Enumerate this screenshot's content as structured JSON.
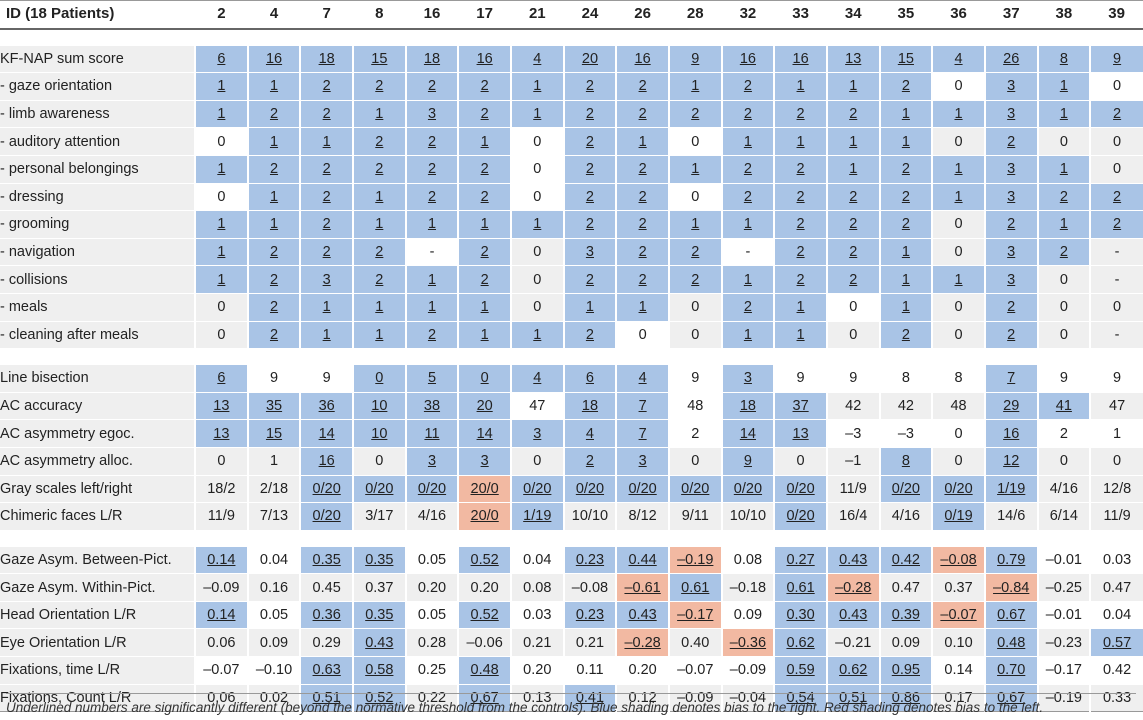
{
  "header": {
    "label": "ID (18 Patients)",
    "patients": [
      "2",
      "4",
      "7",
      "8",
      "16",
      "17",
      "21",
      "24",
      "26",
      "28",
      "32",
      "33",
      "34",
      "35",
      "36",
      "37",
      "38",
      "39"
    ]
  },
  "sections": [
    {
      "rows": [
        {
          "label": "KF-NAP sum score",
          "cells": [
            "6|bu",
            "16|bu",
            "18|bu",
            "15|bu",
            "18|bu",
            "16|bu",
            "4|bu",
            "20|bu",
            "16|bu",
            "9|bu",
            "16|bu",
            "16|bu",
            "13|bu",
            "15|bu",
            "4|bu",
            "26|bu",
            "8|bu",
            "9|bu"
          ]
        },
        {
          "label": "- gaze orientation",
          "cells": [
            "1|bu",
            "1|bu",
            "2|bu",
            "2|bu",
            "2|bu",
            "2|bu",
            "1|bu",
            "2|bu",
            "2|bu",
            "1|bu",
            "2|bu",
            "1|bu",
            "1|bu",
            "2|bu",
            "0|w",
            "3|bu",
            "1|bu",
            "0|w"
          ]
        },
        {
          "label": "- limb awareness",
          "cells": [
            "1|bu",
            "2|bu",
            "2|bu",
            "1|bu",
            "3|bu",
            "2|bu",
            "1|bu",
            "2|bu",
            "2|bu",
            "2|bu",
            "2|bu",
            "2|bu",
            "2|bu",
            "1|bu",
            "1|bu",
            "3|bu",
            "1|bu",
            "2|bu"
          ]
        },
        {
          "label": "- auditory attention",
          "cells": [
            "0|w",
            "1|bu",
            "1|bu",
            "2|bu",
            "2|bu",
            "1|bu",
            "0|w",
            "2|bu",
            "1|bu",
            "0|w",
            "1|bu",
            "1|bu",
            "1|bu",
            "1|bu",
            "0|g",
            "2|bu",
            "0|g",
            "0|g"
          ]
        },
        {
          "label": "- personal belongings",
          "cells": [
            "1|bu",
            "2|bu",
            "2|bu",
            "2|bu",
            "2|bu",
            "2|bu",
            "0|w",
            "2|bu",
            "2|bu",
            "1|bu",
            "2|bu",
            "2|bu",
            "1|bu",
            "2|bu",
            "1|bu",
            "3|bu",
            "1|bu",
            "0|g"
          ]
        },
        {
          "label": "- dressing",
          "cells": [
            "0|w",
            "1|bu",
            "2|bu",
            "1|bu",
            "2|bu",
            "2|bu",
            "0|w",
            "2|bu",
            "2|bu",
            "0|w",
            "2|bu",
            "2|bu",
            "2|bu",
            "2|bu",
            "1|bu",
            "3|bu",
            "2|bu",
            "2|bu"
          ]
        },
        {
          "label": "- grooming",
          "cells": [
            "1|bu",
            "1|bu",
            "2|bu",
            "1|bu",
            "1|bu",
            "1|bu",
            "1|bu",
            "2|bu",
            "2|bu",
            "1|bu",
            "1|bu",
            "2|bu",
            "2|bu",
            "2|bu",
            "0|g",
            "2|bu",
            "1|bu",
            "2|bu"
          ]
        },
        {
          "label": "- navigation",
          "cells": [
            "1|bu",
            "2|bu",
            "2|bu",
            "2|bu",
            "-|w",
            "2|bu",
            "0|g",
            "3|bu",
            "2|bu",
            "2|bu",
            "-|w",
            "2|bu",
            "2|bu",
            "1|bu",
            "0|g",
            "3|bu",
            "2|bu",
            "-|g"
          ]
        },
        {
          "label": "- collisions",
          "cells": [
            "1|bu",
            "2|bu",
            "3|bu",
            "2|bu",
            "1|bu",
            "2|bu",
            "0|g",
            "2|bu",
            "2|bu",
            "2|bu",
            "1|bu",
            "2|bu",
            "2|bu",
            "1|bu",
            "1|bu",
            "3|bu",
            "0|g",
            "-|g"
          ]
        },
        {
          "label": "- meals",
          "cells": [
            "0|g",
            "2|bu",
            "1|bu",
            "1|bu",
            "1|bu",
            "1|bu",
            "0|g",
            "1|bu",
            "1|bu",
            "0|g",
            "2|bu",
            "1|bu",
            "0|w",
            "1|bu",
            "0|g",
            "2|bu",
            "0|g",
            "0|g"
          ]
        },
        {
          "label": "- cleaning after meals",
          "cells": [
            "0|g",
            "2|bu",
            "1|bu",
            "1|bu",
            "2|bu",
            "1|bu",
            "1|bu",
            "2|bu",
            "0|w",
            "0|g",
            "1|bu",
            "1|bu",
            "0|g",
            "2|bu",
            "0|g",
            "2|bu",
            "0|g",
            "-|g"
          ]
        }
      ]
    },
    {
      "rows": [
        {
          "label": "Line bisection",
          "cells": [
            "6|bu",
            "9|w",
            "9|w",
            "0|bu",
            "5|bu",
            "0|bu",
            "4|bu",
            "6|bu",
            "4|bu",
            "9|w",
            "3|bu",
            "9|w",
            "9|w",
            "8|w",
            "8|w",
            "7|bu",
            "9|w",
            "9|w"
          ]
        },
        {
          "label": "AC accuracy",
          "cells": [
            "13|bu",
            "35|bu",
            "36|bu",
            "10|bu",
            "38|bu",
            "20|bu",
            "47|w",
            "18|bu",
            "7|bu",
            "48|w",
            "18|bu",
            "37|bu",
            "42|g",
            "42|g",
            "48|g",
            "29|bu",
            "41|bu",
            "47|g"
          ]
        },
        {
          "label": "AC asymmetry egoc.",
          "cells": [
            "13|bu",
            "15|bu",
            "14|bu",
            "10|bu",
            "11|bu",
            "14|bu",
            "3|bu",
            "4|bu",
            "7|bu",
            "2|w",
            "14|bu",
            "13|bu",
            "–3|w",
            "–3|w",
            "0|w",
            "16|bu",
            "2|w",
            "1|w"
          ]
        },
        {
          "label": "AC asymmetry alloc.",
          "cells": [
            "0|g",
            "1|g",
            "16|bu",
            "0|g",
            "3|bu",
            "3|bu",
            "0|g",
            "2|bu",
            "3|bu",
            "0|g",
            "9|bu",
            "0|g",
            "–1|g",
            "8|bu",
            "0|g",
            "12|bu",
            "0|g",
            "0|g"
          ]
        },
        {
          "label": "Gray scales left/right",
          "cells": [
            "18/2|g",
            "2/18|g",
            "0/20|bu",
            "0/20|bu",
            "0/20|bu",
            "20/0|ru",
            "0/20|bu",
            "0/20|bu",
            "0/20|bu",
            "0/20|bu",
            "0/20|bu",
            "0/20|bu",
            "11/9|g",
            "0/20|bu",
            "0/20|bu",
            "1/19|bu",
            "4/16|g",
            "12/8|g"
          ]
        },
        {
          "label": "Chimeric faces L/R",
          "cells": [
            "11/9|g",
            "7/13|g",
            "0/20|bu",
            "3/17|g",
            "4/16|g",
            "20/0|ru",
            "1/19|bu",
            "10/10|g",
            "8/12|g",
            "9/11|g",
            "10/10|g",
            "0/20|bu",
            "16/4|g",
            "4/16|g",
            "0/19|bu",
            "14/6|g",
            "6/14|g",
            "11/9|g"
          ]
        }
      ]
    },
    {
      "rows": [
        {
          "label": "Gaze Asym. Between-Pict.",
          "cells": [
            "0.14|bu",
            "0.04|w",
            "0.35|bu",
            "0.35|bu",
            "0.05|w",
            "0.52|bu",
            "0.04|w",
            "0.23|bu",
            "0.44|bu",
            "–0.19|ru",
            "0.08|w",
            "0.27|bu",
            "0.43|bu",
            "0.42|bu",
            "–0.08|ru",
            "0.79|bu",
            "–0.01|w",
            "0.03|w"
          ]
        },
        {
          "label": "Gaze Asym. Within-Pict.",
          "cells": [
            "–0.09|g",
            "0.16|g",
            "0.45|g",
            "0.37|g",
            "0.20|g",
            "0.20|g",
            "0.08|g",
            "–0.08|g",
            "–0.61|ru",
            "0.61|bu",
            "–0.18|g",
            "0.61|bu",
            "–0.28|ru",
            "0.47|g",
            "0.37|g",
            "–0.84|ru",
            "–0.25|g",
            "0.47|g"
          ]
        },
        {
          "label": "Head Orientation L/R",
          "cells": [
            "0.14|bu",
            "0.05|w",
            "0.36|bu",
            "0.35|bu",
            "0.05|w",
            "0.52|bu",
            "0.03|w",
            "0.23|bu",
            "0.43|bu",
            "–0.17|ru",
            "0.09|w",
            "0.30|bu",
            "0.43|bu",
            "0.39|bu",
            "–0.07|ru",
            "0.67|bu",
            "–0.01|w",
            "0.04|w"
          ]
        },
        {
          "label": "Eye Orientation L/R",
          "cells": [
            "0.06|g",
            "0.09|g",
            "0.29|g",
            "0.43|bu",
            "0.28|g",
            "–0.06|g",
            "0.21|g",
            "0.21|g",
            "–0.28|ru",
            "0.40|g",
            "–0.36|ru",
            "0.62|bu",
            "–0.21|g",
            "0.09|g",
            "0.10|g",
            "0.48|bu",
            "–0.23|g",
            "0.57|bu"
          ]
        },
        {
          "label": "Fixations, time L/R",
          "cells": [
            "–0.07|w",
            "–0.10|w",
            "0.63|bu",
            "0.58|bu",
            "0.25|w",
            "0.48|bu",
            "0.20|w",
            "0.11|w",
            "0.20|w",
            "–0.07|w",
            "–0.09|w",
            "0.59|bu",
            "0.62|bu",
            "0.95|bu",
            "0.14|w",
            "0.70|bu",
            "–0.17|w",
            "0.42|w"
          ]
        },
        {
          "label": "Fixations, Count L/R",
          "cells": [
            "0.06|g",
            "0.02|g",
            "0.51|bu",
            "0.52|bu",
            "0.22|g",
            "0.67|bu",
            "0.13|g",
            "0.41|bu",
            "0.12|g",
            "–0.09|g",
            "–0.04|g",
            "0.54|bu",
            "0.51|bu",
            "0.86|bu",
            "0.17|g",
            "0.67|bu",
            "–0.19|g",
            "0.33|g"
          ]
        }
      ]
    }
  ],
  "footnote": "Underlined numbers are significantly different (beyond the normative threshold from the controls). Blue shading denotes bias to the right. Red shading denotes bias to the left."
}
